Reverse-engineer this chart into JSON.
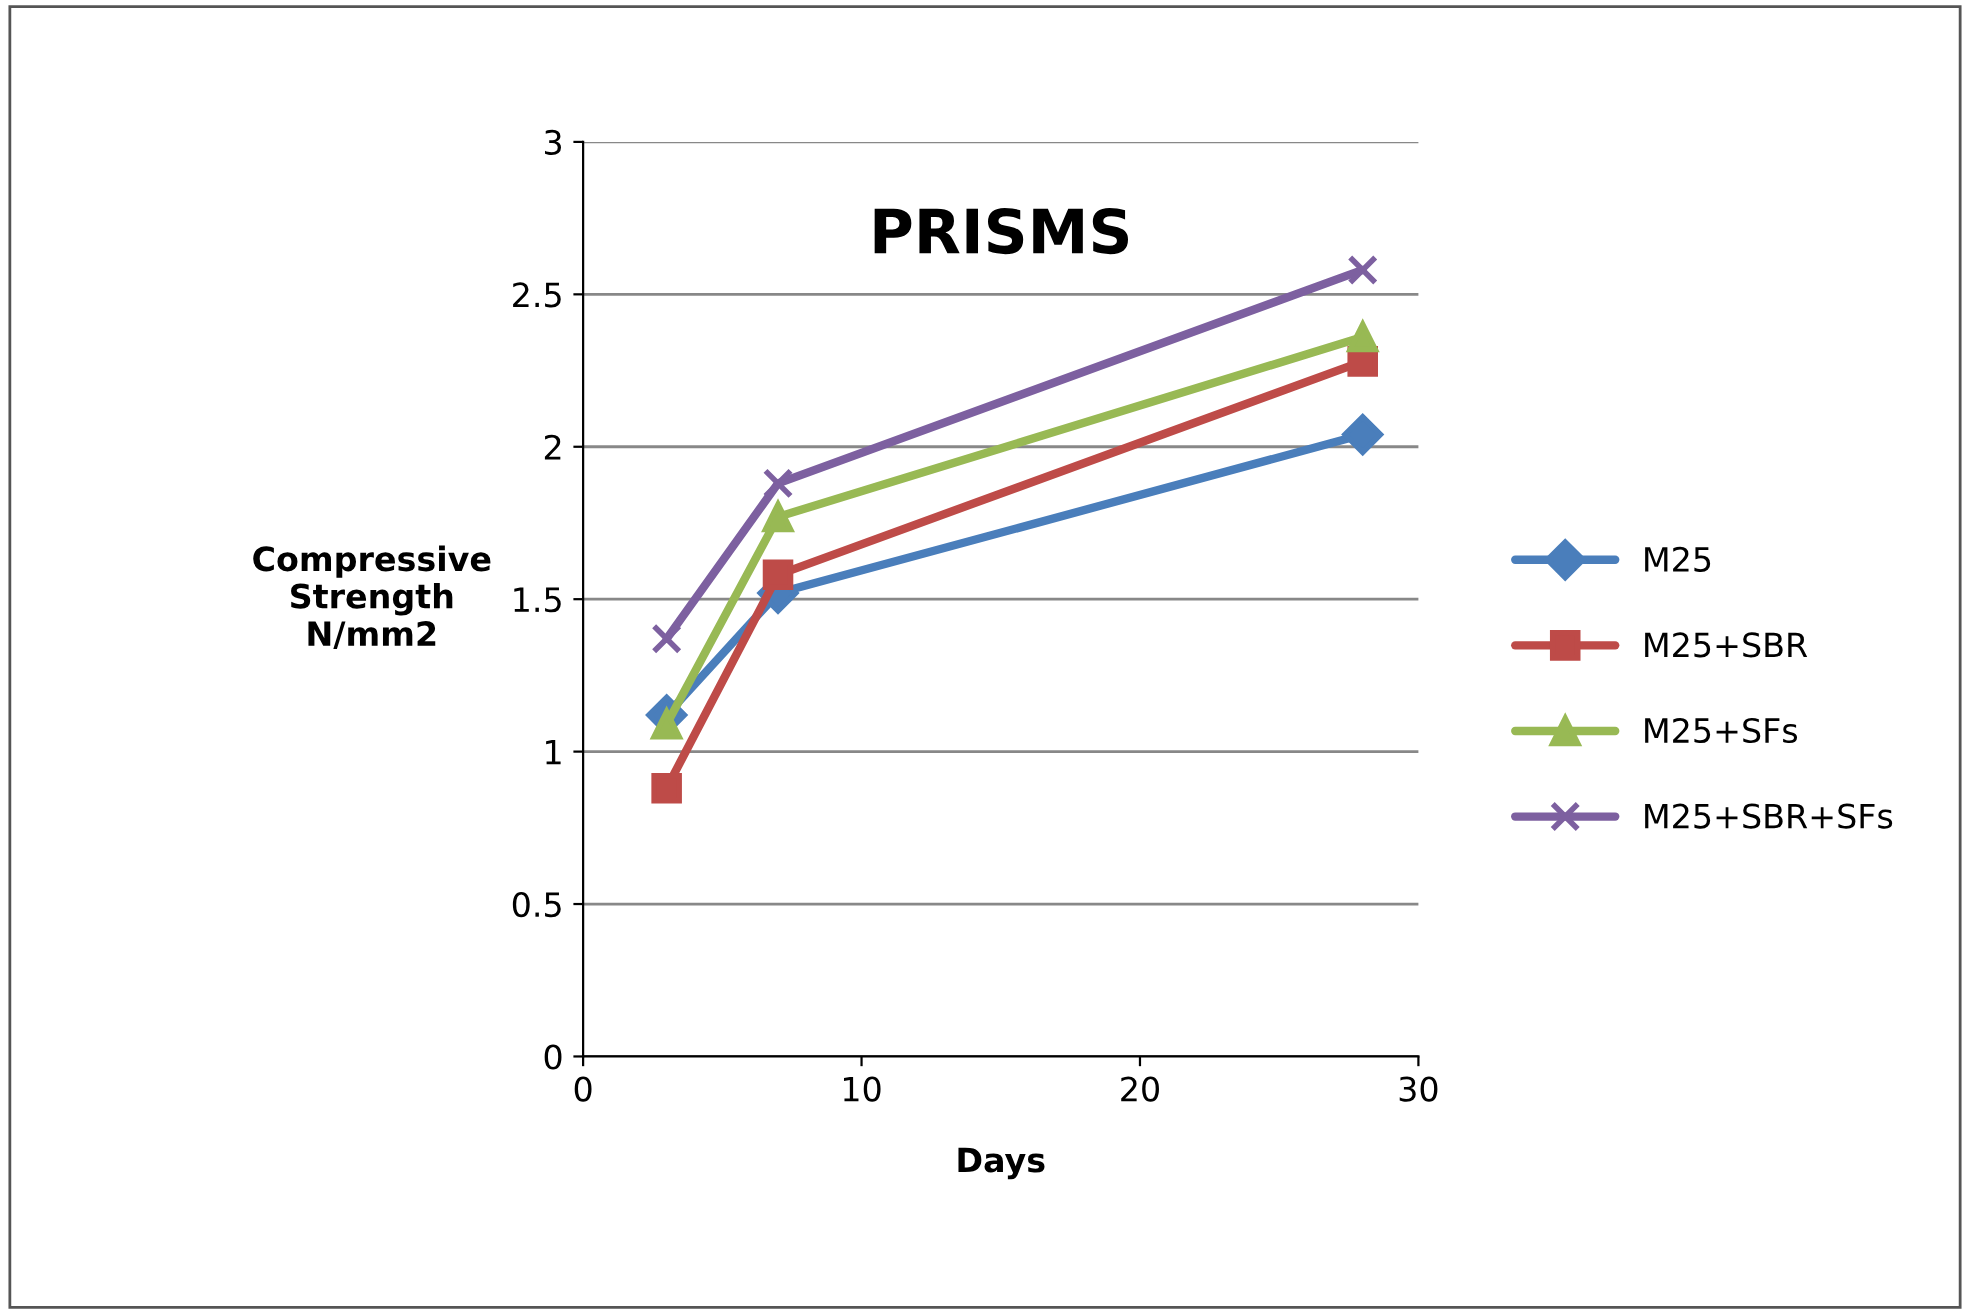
{
  "chart_data": {
    "type": "line",
    "title": "PRISMS",
    "xlabel": "Days",
    "ylabel": "Compressive\nStrength\nN/mm2",
    "x": [
      3,
      7,
      28
    ],
    "series": [
      {
        "name": "M25",
        "color": "#4a7ebb",
        "values": [
          1.12,
          1.52,
          2.04
        ],
        "marker": "diamond"
      },
      {
        "name": "M25+SBR",
        "color": "#be4b48",
        "values": [
          0.88,
          1.58,
          2.28
        ],
        "marker": "square"
      },
      {
        "name": "M25+SFs",
        "color": "#98b954",
        "values": [
          1.09,
          1.77,
          2.36
        ],
        "marker": "triangle"
      },
      {
        "name": "M25+SBR+SFs",
        "color": "#7d60a0",
        "values": [
          1.37,
          1.88,
          2.58
        ],
        "marker": "cross"
      }
    ],
    "xlim": [
      0,
      30
    ],
    "xticks": [
      0,
      10,
      20,
      30
    ],
    "ylim": [
      0,
      3
    ],
    "yticks": [
      0,
      0.5,
      1,
      1.5,
      2,
      2.5,
      3
    ],
    "grid": "y",
    "legend": "right",
    "line_style": "solid"
  }
}
